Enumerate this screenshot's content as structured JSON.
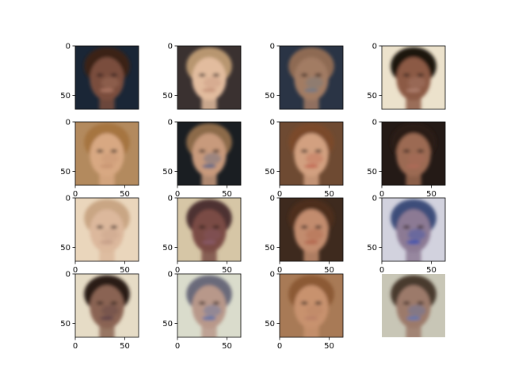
{
  "chart_data": {
    "type": "image_grid",
    "rows": 4,
    "cols": 4,
    "image_size": [
      64,
      64
    ],
    "xlim": [
      0,
      64
    ],
    "ylim": [
      64,
      0
    ],
    "x_ticks": [
      0,
      50
    ],
    "y_ticks": [
      0,
      50
    ],
    "x_tick_labels": [
      "0",
      "50"
    ],
    "y_tick_labels": [
      "0",
      "50"
    ],
    "grid": false,
    "panels": [
      {
        "row": 0,
        "col": 0,
        "axes": "y",
        "palette": {
          "bg": "#1a2636",
          "skin": "#7a4e3c",
          "hair": "#3a2418",
          "accent": "#b07a66"
        }
      },
      {
        "row": 0,
        "col": 1,
        "axes": "y",
        "palette": {
          "bg": "#3a3130",
          "skin": "#e2bc9e",
          "hair": "#b89670",
          "accent": "#c38f78"
        }
      },
      {
        "row": 0,
        "col": 2,
        "axes": "y",
        "palette": {
          "bg": "#2a3445",
          "skin": "#a27b64",
          "hair": "#8e6a52",
          "accent": "#6e7a86"
        }
      },
      {
        "row": 0,
        "col": 3,
        "axes": "y",
        "palette": {
          "bg": "#ece2cc",
          "skin": "#8c5a44",
          "hair": "#1a1210",
          "accent": "#b08272"
        }
      },
      {
        "row": 1,
        "col": 0,
        "axes": "xy",
        "palette": {
          "bg": "#b38a5e",
          "skin": "#d8a882",
          "hair": "#a67440",
          "accent": "#c79170"
        }
      },
      {
        "row": 1,
        "col": 1,
        "axes": "xy",
        "palette": {
          "bg": "#1a1e22",
          "skin": "#c89a7c",
          "hair": "#8c6a4a",
          "accent": "#4a5e86"
        }
      },
      {
        "row": 1,
        "col": 2,
        "axes": "xy",
        "palette": {
          "bg": "#6e4a32",
          "skin": "#d2a080",
          "hair": "#7a4a2a",
          "accent": "#c0604e"
        }
      },
      {
        "row": 1,
        "col": 3,
        "axes": "xy",
        "palette": {
          "bg": "#241a16",
          "skin": "#9c6a52",
          "hair": "#2a1a14",
          "accent": "#b06a5a"
        }
      },
      {
        "row": 2,
        "col": 0,
        "axes": "xy",
        "palette": {
          "bg": "#ead6bc",
          "skin": "#dcb89c",
          "hair": "#c9a684",
          "accent": "#c39c86"
        }
      },
      {
        "row": 2,
        "col": 1,
        "axes": "xy",
        "palette": {
          "bg": "#d6c6a6",
          "skin": "#7a4c44",
          "hair": "#4e3030",
          "accent": "#8a5a6a"
        }
      },
      {
        "row": 2,
        "col": 2,
        "axes": "xy",
        "palette": {
          "bg": "#3e2a1e",
          "skin": "#c28c6e",
          "hair": "#4e2e1a",
          "accent": "#b0604a"
        }
      },
      {
        "row": 2,
        "col": 3,
        "axes": "xy",
        "palette": {
          "bg": "#d2d2de",
          "skin": "#8c7a94",
          "hair": "#3e4e7a",
          "accent": "#2e4ab0"
        }
      },
      {
        "row": 3,
        "col": 0,
        "axes": "xy",
        "palette": {
          "bg": "#e6dcc6",
          "skin": "#8a6452",
          "hair": "#2a1c18",
          "accent": "#5a3e48"
        }
      },
      {
        "row": 3,
        "col": 1,
        "axes": "xy",
        "palette": {
          "bg": "#dadccc",
          "skin": "#b8988a",
          "hair": "#6a6a7a",
          "accent": "#4e6aa8"
        }
      },
      {
        "row": 3,
        "col": 2,
        "axes": "xy",
        "palette": {
          "bg": "#a87a56",
          "skin": "#c8926e",
          "hair": "#8c5a34",
          "accent": "#b88066"
        }
      },
      {
        "row": 3,
        "col": 3,
        "axes": "none",
        "palette": {
          "bg": "#c8c6b6",
          "skin": "#9c7a6a",
          "hair": "#4a3a2e",
          "accent": "#5a76b8"
        }
      }
    ]
  }
}
